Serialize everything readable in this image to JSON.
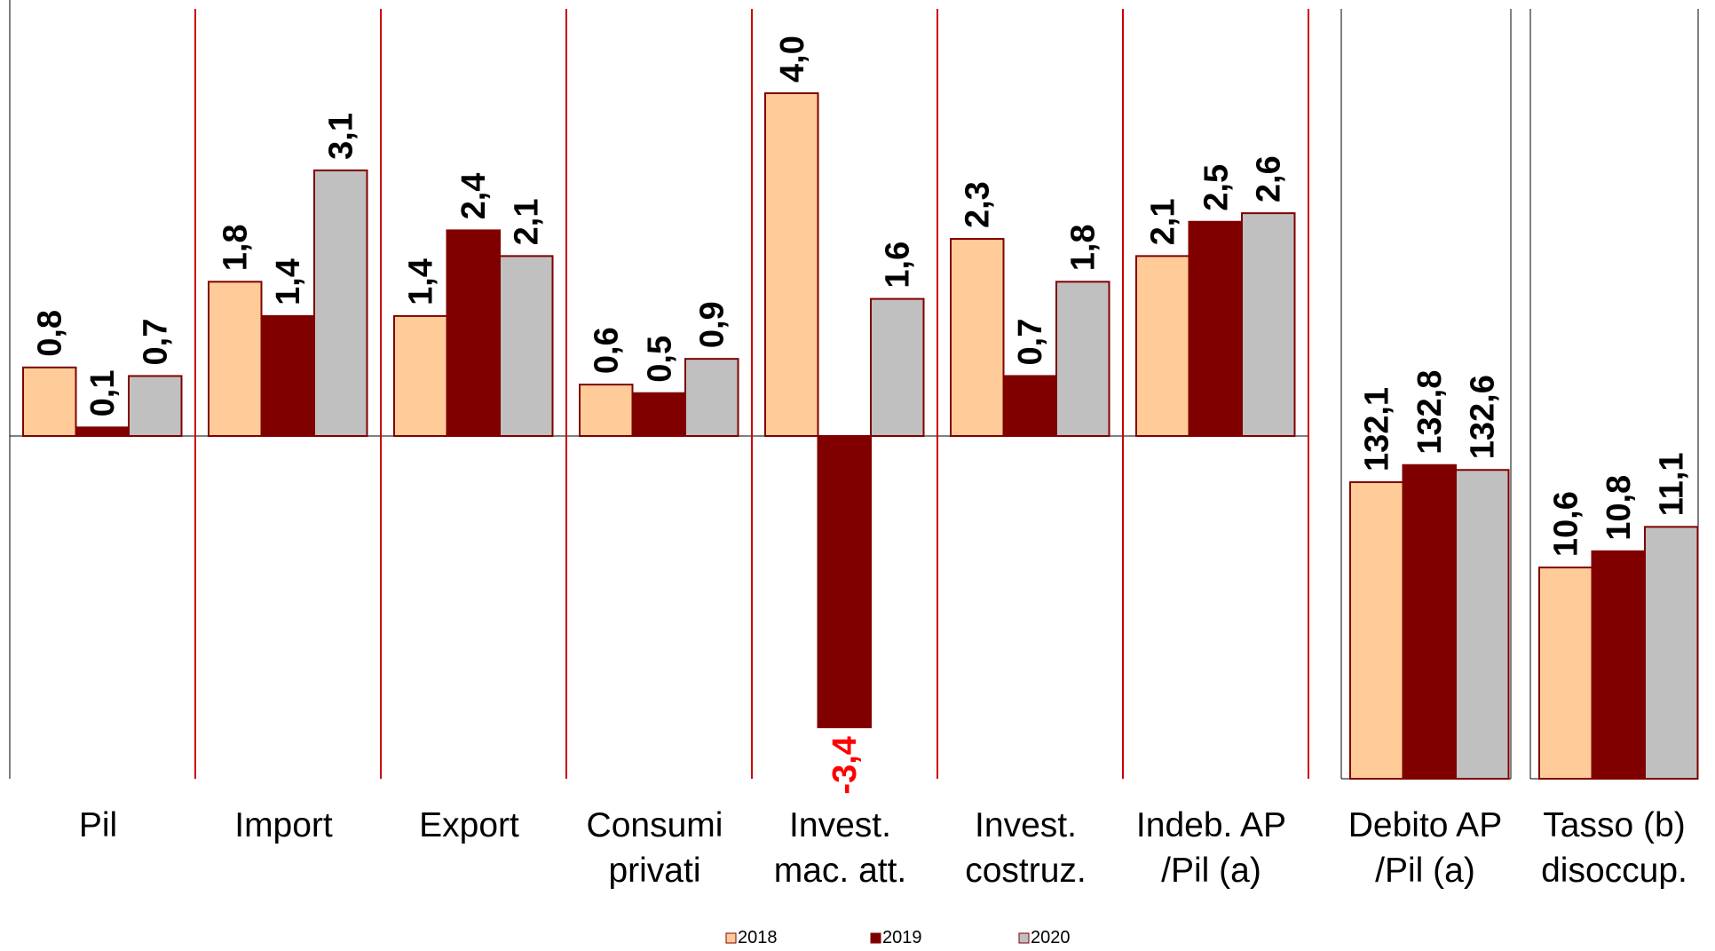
{
  "chart_data": {
    "type": "bar",
    "legend_position": "bottom",
    "series": [
      {
        "name": "2018",
        "color": "#FFCC99"
      },
      {
        "name": "2019",
        "color": "#800000"
      },
      {
        "name": "2020",
        "color": "#C0C0C0"
      }
    ],
    "bar_border_color": "#800000",
    "separator_color": "#CC0000",
    "negative_label_color": "#FF0000",
    "panels": [
      {
        "scale": "growth",
        "groups": [
          {
            "line1": "Pil",
            "line2": "",
            "values": [
              0.8,
              0.1,
              0.7
            ],
            "labels": [
              "0,8",
              "0,1",
              "0,7"
            ]
          },
          {
            "line1": "Import",
            "line2": "",
            "values": [
              1.8,
              1.4,
              3.1
            ],
            "labels": [
              "1,8",
              "1,4",
              "3,1"
            ]
          },
          {
            "line1": "Export",
            "line2": "",
            "values": [
              1.4,
              2.4,
              2.1
            ],
            "labels": [
              "1,4",
              "2,4",
              "2,1"
            ]
          },
          {
            "line1": "Consumi",
            "line2": "privati",
            "values": [
              0.6,
              0.5,
              0.9
            ],
            "labels": [
              "0,6",
              "0,5",
              "0,9"
            ]
          },
          {
            "line1": "Invest.",
            "line2": "mac. att.",
            "values": [
              4.0,
              -3.4,
              1.6
            ],
            "labels": [
              "4,0",
              "-3,4",
              "1,6"
            ]
          },
          {
            "line1": "Invest.",
            "line2": "costruz.",
            "values": [
              2.3,
              0.7,
              1.8
            ],
            "labels": [
              "2,3",
              "0,7",
              "1,8"
            ]
          },
          {
            "line1": "Indeb. AP",
            "line2": "/Pil (a)",
            "values": [
              2.1,
              2.5,
              2.6
            ],
            "labels": [
              "2,1",
              "2,5",
              "2,6"
            ]
          }
        ]
      },
      {
        "scale": "debt",
        "groups": [
          {
            "line1": "Debito AP",
            "line2": "/Pil (a)",
            "values": [
              132.1,
              132.8,
              132.6
            ],
            "labels": [
              "132,1",
              "132,8",
              "132,6"
            ]
          }
        ]
      },
      {
        "scale": "unemployment",
        "groups": [
          {
            "line1": "Tasso (b)",
            "line2": "disoccup.",
            "values": [
              10.6,
              10.8,
              11.1
            ],
            "labels": [
              "10,6",
              "10,8",
              "11,1"
            ]
          }
        ]
      }
    ]
  }
}
